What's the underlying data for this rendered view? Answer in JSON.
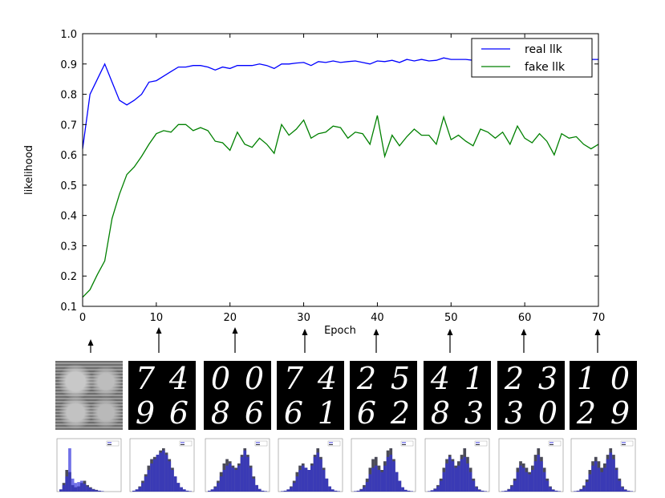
{
  "chart_data": {
    "type": "line",
    "xlabel": "Epoch",
    "ylabel": "likelihood",
    "xlim": [
      0,
      70
    ],
    "ylim": [
      0.1,
      1.0
    ],
    "xticks": [
      "0",
      "10",
      "20",
      "30",
      "40",
      "50",
      "60",
      "70"
    ],
    "yticks": [
      "0.1",
      "0.2",
      "0.3",
      "0.4",
      "0.5",
      "0.6",
      "0.7",
      "0.8",
      "0.9",
      "1.0"
    ],
    "grid": false,
    "legend_position": "top-right",
    "x": [
      0,
      1,
      2,
      3,
      4,
      5,
      6,
      7,
      8,
      9,
      10,
      11,
      12,
      13,
      14,
      15,
      16,
      17,
      18,
      19,
      20,
      21,
      22,
      23,
      24,
      25,
      26,
      27,
      28,
      29,
      30,
      31,
      32,
      33,
      34,
      35,
      36,
      37,
      38,
      39,
      40,
      41,
      42,
      43,
      44,
      45,
      46,
      47,
      48,
      49,
      50,
      51,
      52,
      53,
      54,
      55,
      56,
      57,
      58,
      59,
      60,
      61,
      62,
      63,
      64,
      65,
      66,
      67,
      68,
      69,
      70
    ],
    "series": [
      {
        "name": "real llk",
        "color": "#0000ff",
        "values": [
          0.62,
          0.8,
          0.85,
          0.9,
          0.84,
          0.78,
          0.765,
          0.78,
          0.8,
          0.84,
          0.845,
          0.86,
          0.875,
          0.89,
          0.89,
          0.895,
          0.895,
          0.89,
          0.88,
          0.89,
          0.885,
          0.895,
          0.895,
          0.895,
          0.9,
          0.895,
          0.885,
          0.9,
          0.9,
          0.903,
          0.905,
          0.895,
          0.908,
          0.905,
          0.91,
          0.905,
          0.908,
          0.91,
          0.905,
          0.9,
          0.91,
          0.908,
          0.912,
          0.905,
          0.915,
          0.91,
          0.915,
          0.91,
          0.912,
          0.92,
          0.915,
          0.915,
          0.915,
          0.912,
          0.91,
          0.912,
          0.915,
          0.915,
          0.915,
          0.915,
          0.915,
          0.915,
          0.915,
          0.915,
          0.918,
          0.915,
          0.92,
          0.915,
          0.92,
          0.915,
          0.915
        ]
      },
      {
        "name": "fake llk",
        "color": "#008000",
        "values": [
          0.13,
          0.155,
          0.205,
          0.25,
          0.39,
          0.47,
          0.535,
          0.56,
          0.595,
          0.635,
          0.67,
          0.68,
          0.675,
          0.7,
          0.7,
          0.68,
          0.69,
          0.68,
          0.645,
          0.64,
          0.615,
          0.675,
          0.635,
          0.625,
          0.655,
          0.635,
          0.605,
          0.7,
          0.665,
          0.685,
          0.715,
          0.655,
          0.67,
          0.675,
          0.695,
          0.69,
          0.655,
          0.675,
          0.67,
          0.635,
          0.73,
          0.595,
          0.665,
          0.63,
          0.66,
          0.685,
          0.665,
          0.665,
          0.635,
          0.725,
          0.65,
          0.665,
          0.645,
          0.63,
          0.685,
          0.675,
          0.655,
          0.675,
          0.635,
          0.695,
          0.655,
          0.64,
          0.67,
          0.645,
          0.6,
          0.67,
          0.655,
          0.66,
          0.635,
          0.62,
          0.635
        ]
      }
    ]
  },
  "snapshots": [
    {
      "epoch": 1,
      "digits": [
        "",
        "",
        "",
        ""
      ],
      "style": "noise"
    },
    {
      "epoch": 10,
      "digits": [
        "7",
        "4",
        "9",
        "6"
      ],
      "style": "digits"
    },
    {
      "epoch": 21,
      "digits": [
        "0",
        "0",
        "8",
        "6"
      ],
      "style": "digits"
    },
    {
      "epoch": 31,
      "digits": [
        "7",
        "4",
        "6",
        "1"
      ],
      "style": "digits"
    },
    {
      "epoch": 40,
      "digits": [
        "2",
        "5",
        "6",
        "2"
      ],
      "style": "digits"
    },
    {
      "epoch": 50,
      "digits": [
        "4",
        "1",
        "8",
        "3"
      ],
      "style": "digits"
    },
    {
      "epoch": 60,
      "digits": [
        "2",
        "3",
        "3",
        "0"
      ],
      "style": "digits"
    },
    {
      "epoch": 70,
      "digits": [
        "1",
        "0",
        "2",
        "9"
      ],
      "style": "digits"
    }
  ],
  "histograms": [
    {
      "real": [
        0.05,
        0.15,
        0.35,
        1.0,
        0.3,
        0.2,
        0.22,
        0.25,
        0.18,
        0.12,
        0.08,
        0.05,
        0.03,
        0.02,
        0.01,
        0,
        0,
        0,
        0,
        0
      ],
      "fake": [
        0.05,
        0.2,
        0.5,
        0.45,
        0.15,
        0.1,
        0.12,
        0.2,
        0.25,
        0.15,
        0.1,
        0.06,
        0.04,
        0.02,
        0.01,
        0,
        0,
        0,
        0,
        0
      ]
    },
    {
      "real": [
        0.02,
        0.05,
        0.1,
        0.2,
        0.35,
        0.5,
        0.65,
        0.75,
        0.85,
        0.9,
        0.95,
        0.85,
        0.7,
        0.5,
        0.35,
        0.2,
        0.1,
        0.05,
        0.02,
        0.01
      ],
      "fake": [
        0.02,
        0.05,
        0.12,
        0.25,
        0.4,
        0.6,
        0.75,
        0.8,
        0.85,
        0.95,
        1.0,
        0.9,
        0.75,
        0.55,
        0.35,
        0.2,
        0.1,
        0.05,
        0.02,
        0.01
      ]
    },
    {
      "real": [
        0.02,
        0.05,
        0.1,
        0.2,
        0.35,
        0.5,
        0.6,
        0.65,
        0.55,
        0.5,
        0.6,
        0.8,
        0.95,
        0.8,
        0.55,
        0.3,
        0.15,
        0.06,
        0.02,
        0.01
      ],
      "fake": [
        0.02,
        0.05,
        0.12,
        0.25,
        0.45,
        0.65,
        0.75,
        0.7,
        0.6,
        0.55,
        0.65,
        0.85,
        1.0,
        0.85,
        0.6,
        0.35,
        0.15,
        0.06,
        0.02,
        0.01
      ]
    },
    {
      "real": [
        0.01,
        0.02,
        0.05,
        0.1,
        0.2,
        0.35,
        0.5,
        0.6,
        0.55,
        0.5,
        0.6,
        0.8,
        0.9,
        0.75,
        0.5,
        0.3,
        0.12,
        0.05,
        0.02,
        0.01
      ],
      "fake": [
        0.01,
        0.02,
        0.05,
        0.12,
        0.25,
        0.45,
        0.6,
        0.65,
        0.55,
        0.5,
        0.65,
        0.85,
        1.0,
        0.8,
        0.55,
        0.3,
        0.12,
        0.05,
        0.02,
        0.01
      ]
    },
    {
      "real": [
        0.01,
        0.02,
        0.05,
        0.1,
        0.22,
        0.4,
        0.55,
        0.6,
        0.5,
        0.45,
        0.6,
        0.8,
        0.85,
        0.7,
        0.45,
        0.25,
        0.1,
        0.04,
        0.02,
        0.01
      ],
      "fake": [
        0.01,
        0.02,
        0.06,
        0.15,
        0.3,
        0.55,
        0.75,
        0.8,
        0.6,
        0.5,
        0.7,
        0.95,
        1.0,
        0.75,
        0.45,
        0.25,
        0.1,
        0.04,
        0.02,
        0.01
      ]
    },
    {
      "real": [
        0.01,
        0.03,
        0.06,
        0.12,
        0.25,
        0.45,
        0.65,
        0.8,
        0.7,
        0.55,
        0.6,
        0.75,
        0.8,
        0.65,
        0.45,
        0.25,
        0.1,
        0.04,
        0.02,
        0.01
      ],
      "fake": [
        0.01,
        0.03,
        0.07,
        0.15,
        0.3,
        0.55,
        0.75,
        0.85,
        0.75,
        0.6,
        0.7,
        0.85,
        1.0,
        0.8,
        0.55,
        0.3,
        0.12,
        0.05,
        0.02,
        0.01
      ]
    },
    {
      "real": [
        0.01,
        0.02,
        0.05,
        0.12,
        0.25,
        0.45,
        0.6,
        0.55,
        0.45,
        0.4,
        0.5,
        0.7,
        0.85,
        0.7,
        0.45,
        0.25,
        0.1,
        0.04,
        0.02,
        0.01
      ],
      "fake": [
        0.01,
        0.02,
        0.06,
        0.15,
        0.3,
        0.55,
        0.7,
        0.65,
        0.55,
        0.45,
        0.6,
        0.85,
        1.0,
        0.8,
        0.55,
        0.3,
        0.12,
        0.05,
        0.02,
        0.01
      ]
    },
    {
      "real": [
        0.01,
        0.02,
        0.05,
        0.1,
        0.22,
        0.4,
        0.6,
        0.7,
        0.55,
        0.45,
        0.55,
        0.75,
        0.9,
        0.75,
        0.5,
        0.25,
        0.1,
        0.04,
        0.02,
        0.01
      ],
      "fake": [
        0.01,
        0.02,
        0.06,
        0.14,
        0.28,
        0.5,
        0.7,
        0.8,
        0.7,
        0.55,
        0.65,
        0.85,
        1.0,
        0.85,
        0.55,
        0.3,
        0.12,
        0.05,
        0.02,
        0.01
      ]
    }
  ]
}
